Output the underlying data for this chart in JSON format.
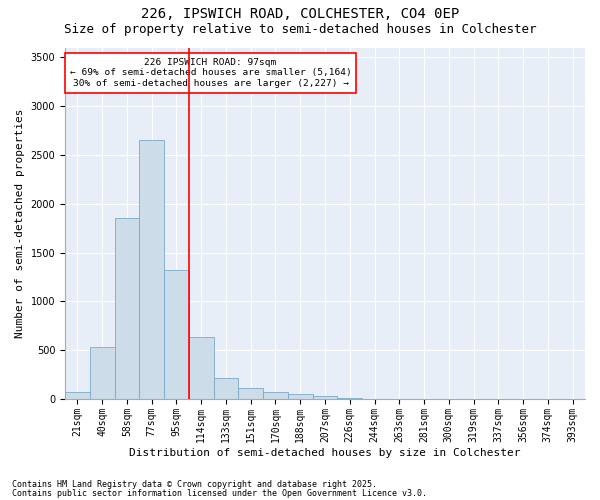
{
  "title1": "226, IPSWICH ROAD, COLCHESTER, CO4 0EP",
  "title2": "Size of property relative to semi-detached houses in Colchester",
  "xlabel": "Distribution of semi-detached houses by size in Colchester",
  "ylabel": "Number of semi-detached properties",
  "footnote1": "Contains HM Land Registry data © Crown copyright and database right 2025.",
  "footnote2": "Contains public sector information licensed under the Open Government Licence v3.0.",
  "categories": [
    "21sqm",
    "40sqm",
    "58sqm",
    "77sqm",
    "95sqm",
    "114sqm",
    "133sqm",
    "151sqm",
    "170sqm",
    "188sqm",
    "207sqm",
    "226sqm",
    "244sqm",
    "263sqm",
    "281sqm",
    "300sqm",
    "319sqm",
    "337sqm",
    "356sqm",
    "374sqm",
    "393sqm"
  ],
  "values": [
    75,
    530,
    1850,
    2650,
    1320,
    640,
    220,
    115,
    75,
    50,
    30,
    10,
    5,
    3,
    1,
    0,
    0,
    0,
    0,
    0,
    0
  ],
  "bar_color": "#ccdce8",
  "bar_edge_color": "#7aaac8",
  "vline_x": 4.5,
  "vline_color": "red",
  "annotation_text": "226 IPSWICH ROAD: 97sqm\n← 69% of semi-detached houses are smaller (5,164)\n30% of semi-detached houses are larger (2,227) →",
  "annotation_box_color": "white",
  "annotation_box_edge": "red",
  "ylim": [
    0,
    3600
  ],
  "yticks": [
    0,
    500,
    1000,
    1500,
    2000,
    2500,
    3000,
    3500
  ],
  "bg_color": "#ffffff",
  "plot_bg_color": "#e8eef8",
  "title1_fontsize": 10,
  "title2_fontsize": 9,
  "axis_label_fontsize": 8,
  "tick_fontsize": 7,
  "footnote_fontsize": 6
}
